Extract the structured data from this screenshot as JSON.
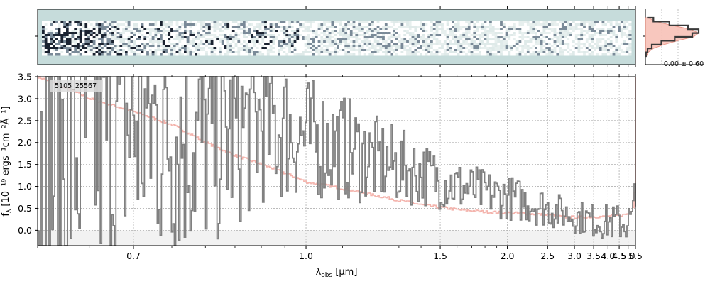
{
  "chart_data": [
    {
      "type": "heatmap",
      "name": "2D spectrum",
      "colormap": [
        "#c6dcdb",
        "#ffffff",
        "#1a2230"
      ],
      "x_range": [
        0.6,
        5.5
      ],
      "y_range": [
        0,
        1
      ]
    },
    {
      "type": "line",
      "name": "1D spectrum",
      "label": "5105_25567",
      "xlabel_main": "λ",
      "xlabel_sub": "obs",
      "xlabel_unit": " [μm]",
      "ylabel_main": "f",
      "ylabel_sub": "λ",
      "ylabel_unit": "[10⁻¹⁹ ergs⁻¹cm⁻²Å⁻¹]",
      "x_scale": "reciprocal",
      "xlim": [
        0.6,
        5.5
      ],
      "ylim": [
        -0.35,
        3.5
      ],
      "x_ticks": [
        "0.7",
        "1.0",
        "1.5",
        "2.0",
        "2.5",
        "3.0",
        "3.5",
        "4.0",
        "4.5",
        "5.0",
        "5.5"
      ],
      "y_ticks": [
        "0.0",
        "0.5",
        "1.0",
        "1.5",
        "2.0",
        "2.5",
        "3.0",
        "3.5"
      ],
      "grid": true,
      "series": [
        {
          "role": "flux",
          "color": "#808080",
          "x": [
            0.6,
            0.65,
            0.7,
            0.75,
            0.8,
            0.85,
            0.9,
            0.95,
            1.0,
            1.1,
            1.2,
            1.3,
            1.4,
            1.5,
            1.6,
            1.8,
            2.0,
            2.2,
            2.4,
            2.6,
            2.8,
            3.0,
            3.2,
            3.5,
            3.8,
            4.0,
            4.2,
            4.5,
            4.8,
            5.0,
            5.2,
            5.4,
            5.5
          ],
          "y": [
            1.4,
            2.2,
            2.5,
            2.3,
            2.0,
            2.2,
            2.5,
            2.3,
            2.1,
            1.9,
            1.6,
            1.45,
            1.3,
            1.15,
            1.0,
            0.85,
            0.75,
            0.65,
            0.55,
            0.45,
            0.38,
            0.32,
            0.28,
            0.22,
            0.2,
            0.18,
            0.17,
            0.17,
            0.18,
            0.2,
            0.22,
            0.25,
            0.2
          ]
        },
        {
          "role": "error",
          "color": "#f4b4ad",
          "x": [
            0.6,
            0.65,
            0.7,
            0.75,
            0.8,
            0.85,
            0.9,
            0.95,
            1.0,
            1.1,
            1.2,
            1.3,
            1.4,
            1.5,
            1.6,
            1.8,
            2.0,
            2.2,
            2.4,
            2.6,
            2.8,
            3.0,
            3.2,
            3.5,
            3.8,
            4.0,
            4.2,
            4.5,
            4.8,
            5.0,
            5.2,
            5.3,
            5.4,
            5.45,
            5.5
          ],
          "y": [
            3.5,
            3.0,
            2.7,
            2.4,
            2.0,
            1.7,
            1.5,
            1.3,
            1.1,
            0.95,
            0.8,
            0.68,
            0.58,
            0.52,
            0.47,
            0.42,
            0.4,
            0.38,
            0.36,
            0.33,
            0.3,
            0.3,
            0.3,
            0.31,
            0.31,
            0.32,
            0.33,
            0.34,
            0.36,
            0.38,
            0.45,
            0.55,
            0.9,
            1.5,
            3.5
          ]
        }
      ]
    },
    {
      "type": "area",
      "name": "profile",
      "annotation": "0.00 ± 0.60",
      "series": [
        {
          "role": "profile",
          "color": "#f8c1b8",
          "y": [
            0,
            0.1,
            0.2,
            0.3,
            0.4,
            0.5,
            0.6,
            0.7,
            0.8,
            0.9,
            1.0
          ],
          "x": [
            0.02,
            0.05,
            0.15,
            0.35,
            0.6,
            0.9,
            1.0,
            0.85,
            0.5,
            0.2,
            0.05
          ]
        },
        {
          "role": "model",
          "color": "#3a3a3a",
          "y": [
            0,
            0.1,
            0.2,
            0.3,
            0.4,
            0.5,
            0.6,
            0.7,
            0.8,
            0.9,
            1.0
          ],
          "x": [
            0.01,
            0.04,
            0.12,
            0.3,
            0.55,
            0.88,
            1.0,
            0.8,
            0.45,
            0.15,
            0.03
          ]
        }
      ]
    }
  ]
}
